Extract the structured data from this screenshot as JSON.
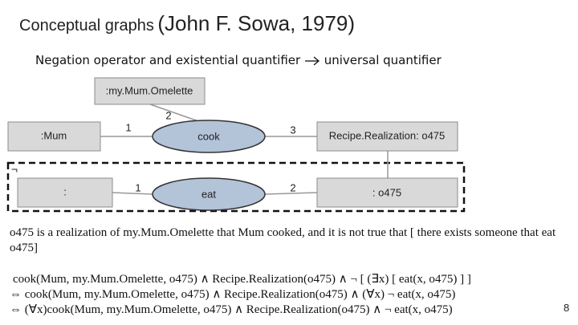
{
  "header": {
    "title": "Conceptual graphs",
    "title_source": "(John F. Sowa, 1979)",
    "subtitle_from": "Negation operator and existential quantifier",
    "subtitle_to": "universal quantifier"
  },
  "nodes": [
    {
      "label": ":my.Mum.Omelette"
    },
    {
      "label": ":Mum"
    },
    {
      "label": "cook"
    },
    {
      "label": "Recipe.Realization: o475"
    },
    {
      "label": ":"
    },
    {
      "label": "eat"
    },
    {
      "label": ": o475"
    }
  ],
  "edges": [
    {
      "label": "2"
    },
    {
      "label": "1"
    },
    {
      "label": "3"
    },
    {
      "label": "1"
    },
    {
      "label": "2"
    }
  ],
  "negation": "¬",
  "paragraph": "o475 is a realization of my.Mum.Omelette that Mum cooked, and it is not true that [ there exists someone that eat o475]",
  "formulas": [
    "cook(Mum, my.Mum.Omelette, o475) ∧ Recipe.Realization(o475) ∧ ¬ [ (∃x) [ eat(x, o475) ] ]",
    "⇔ cook(Mum, my.Mum.Omelette, o475) ∧ Recipe.Realization(o475) ∧ (∀x) ¬ eat(x, o475)",
    "⇔ (∀x)cook(Mum, my.Mum.Omelette, o475) ∧ Recipe.Realization(o475) ∧ ¬ eat(x, o475)"
  ],
  "page_number": "8"
}
